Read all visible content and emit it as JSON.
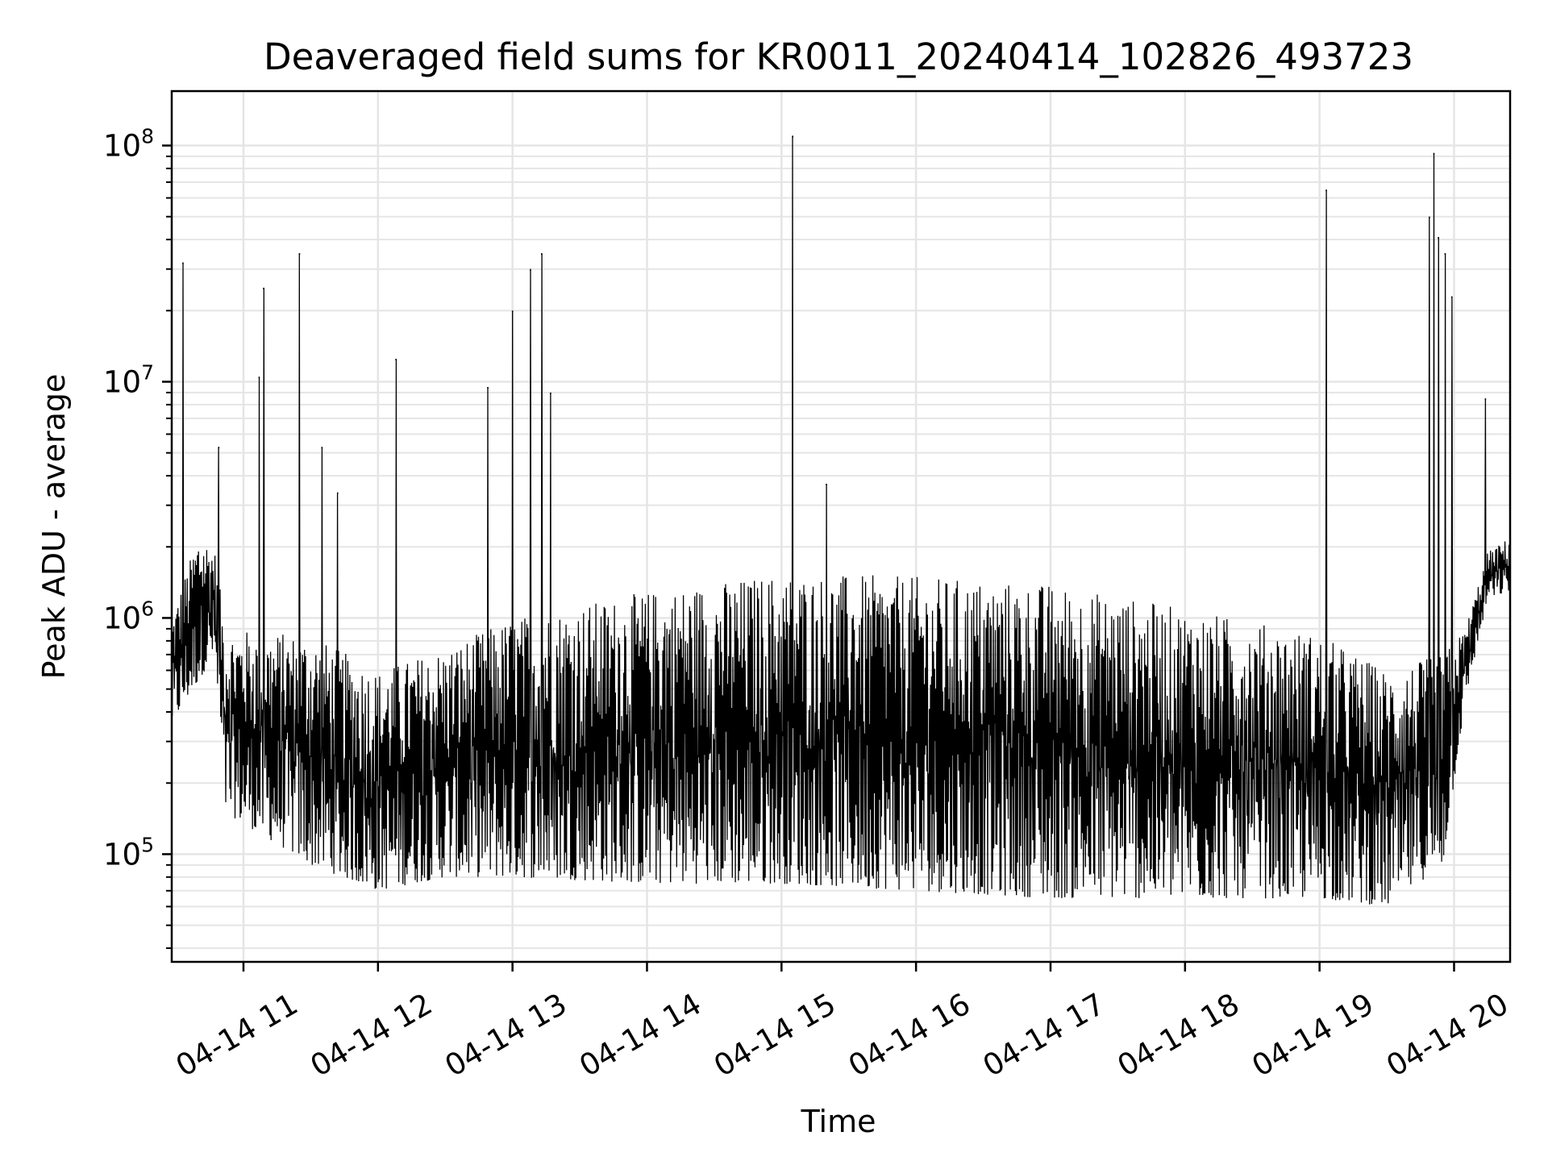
{
  "chart_data": {
    "type": "line",
    "title": "Deaveraged field sums for KR0011_20240414_102826_493723",
    "xlabel": "Time",
    "ylabel": "Peak ADU - average",
    "yscale": "log",
    "xlim": [
      "2024-04-14 10:28",
      "2024-04-14 20:25"
    ],
    "ylim": [
      35000,
      170000000
    ],
    "grid": true,
    "line_color": "#000000",
    "grid_color": "#e5e5e5",
    "x_ticks": [
      {
        "value": "2024-04-14 11:00",
        "label": "04-14 11"
      },
      {
        "value": "2024-04-14 12:00",
        "label": "04-14 12"
      },
      {
        "value": "2024-04-14 13:00",
        "label": "04-14 13"
      },
      {
        "value": "2024-04-14 14:00",
        "label": "04-14 14"
      },
      {
        "value": "2024-04-14 15:00",
        "label": "04-14 15"
      },
      {
        "value": "2024-04-14 16:00",
        "label": "04-14 16"
      },
      {
        "value": "2024-04-14 17:00",
        "label": "04-14 17"
      },
      {
        "value": "2024-04-14 18:00",
        "label": "04-14 18"
      },
      {
        "value": "2024-04-14 19:00",
        "label": "04-14 19"
      },
      {
        "value": "2024-04-14 20:00",
        "label": "04-14 20"
      }
    ],
    "y_ticks": [
      {
        "value": 100000,
        "base": "10",
        "exp": "5"
      },
      {
        "value": 1000000,
        "base": "10",
        "exp": "6"
      },
      {
        "value": 10000000,
        "base": "10",
        "exp": "7"
      },
      {
        "value": 100000000,
        "base": "10",
        "exp": "8"
      }
    ],
    "spikes": [
      {
        "x": "2024-04-14 10:33",
        "y": 32000000
      },
      {
        "x": "2024-04-14 10:49",
        "y": 5300000
      },
      {
        "x": "2024-04-14 11:09",
        "y": 25000000
      },
      {
        "x": "2024-04-14 11:07",
        "y": 10500000
      },
      {
        "x": "2024-04-14 11:25",
        "y": 35000000
      },
      {
        "x": "2024-04-14 11:35",
        "y": 5300000
      },
      {
        "x": "2024-04-14 11:42",
        "y": 3400000
      },
      {
        "x": "2024-04-14 12:08",
        "y": 12500000
      },
      {
        "x": "2024-04-14 12:49",
        "y": 9500000
      },
      {
        "x": "2024-04-14 13:00",
        "y": 20000000
      },
      {
        "x": "2024-04-14 13:08",
        "y": 30000000
      },
      {
        "x": "2024-04-14 13:13",
        "y": 35000000
      },
      {
        "x": "2024-04-14 13:17",
        "y": 9000000
      },
      {
        "x": "2024-04-14 15:05",
        "y": 110000000
      },
      {
        "x": "2024-04-14 15:20",
        "y": 3700000
      },
      {
        "x": "2024-04-14 19:03",
        "y": 65000000
      },
      {
        "x": "2024-04-14 19:49",
        "y": 50000000
      },
      {
        "x": "2024-04-14 19:51",
        "y": 93000000
      },
      {
        "x": "2024-04-14 19:53",
        "y": 41000000
      },
      {
        "x": "2024-04-14 19:56",
        "y": 35000000
      },
      {
        "x": "2024-04-14 19:59",
        "y": 23000000
      },
      {
        "x": "2024-04-14 20:14",
        "y": 8500000
      }
    ],
    "upper_envelope": [
      {
        "x": "2024-04-14 10:28",
        "y": 1000000
      },
      {
        "x": "2024-04-14 10:40",
        "y": 2300000
      },
      {
        "x": "2024-04-14 10:47",
        "y": 2000000
      },
      {
        "x": "2024-04-14 10:52",
        "y": 900000
      },
      {
        "x": "2024-04-14 11:30",
        "y": 850000
      },
      {
        "x": "2024-04-14 12:00",
        "y": 600000
      },
      {
        "x": "2024-04-14 12:30",
        "y": 750000
      },
      {
        "x": "2024-04-14 13:00",
        "y": 1000000
      },
      {
        "x": "2024-04-14 14:00",
        "y": 1300000
      },
      {
        "x": "2024-04-14 15:00",
        "y": 1550000
      },
      {
        "x": "2024-04-14 16:00",
        "y": 1500000
      },
      {
        "x": "2024-04-14 17:00",
        "y": 1400000
      },
      {
        "x": "2024-04-14 18:00",
        "y": 1100000
      },
      {
        "x": "2024-04-14 19:00",
        "y": 850000
      },
      {
        "x": "2024-04-14 19:30",
        "y": 600000
      },
      {
        "x": "2024-04-14 19:55",
        "y": 700000
      },
      {
        "x": "2024-04-14 20:05",
        "y": 900000
      },
      {
        "x": "2024-04-14 20:15",
        "y": 1900000
      },
      {
        "x": "2024-04-14 20:25",
        "y": 2200000
      }
    ],
    "lower_envelope": [
      {
        "x": "2024-04-14 10:28",
        "y": 350000
      },
      {
        "x": "2024-04-14 10:47",
        "y": 700000
      },
      {
        "x": "2024-04-14 10:52",
        "y": 150000
      },
      {
        "x": "2024-04-14 11:30",
        "y": 90000
      },
      {
        "x": "2024-04-14 12:00",
        "y": 70000
      },
      {
        "x": "2024-04-14 12:30",
        "y": 80000
      },
      {
        "x": "2024-04-14 13:00",
        "y": 80000
      },
      {
        "x": "2024-04-14 14:00",
        "y": 75000
      },
      {
        "x": "2024-04-14 15:00",
        "y": 75000
      },
      {
        "x": "2024-04-14 16:00",
        "y": 70000
      },
      {
        "x": "2024-04-14 17:00",
        "y": 65000
      },
      {
        "x": "2024-04-14 18:00",
        "y": 65000
      },
      {
        "x": "2024-04-14 19:00",
        "y": 65000
      },
      {
        "x": "2024-04-14 19:30",
        "y": 60000
      },
      {
        "x": "2024-04-14 19:55",
        "y": 90000
      },
      {
        "x": "2024-04-14 20:05",
        "y": 450000
      },
      {
        "x": "2024-04-14 20:15",
        "y": 1200000
      },
      {
        "x": "2024-04-14 20:25",
        "y": 1300000
      }
    ]
  }
}
